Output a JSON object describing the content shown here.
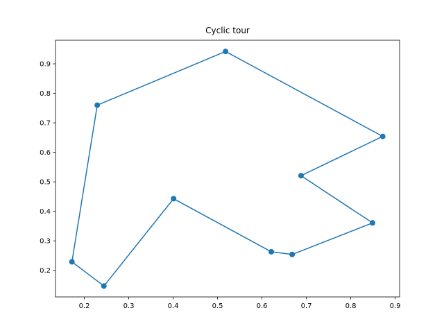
{
  "chart_data": {
    "type": "line",
    "title": "Cyclic tour",
    "xlabel": "",
    "ylabel": "",
    "xlim": [
      0.135,
      0.91
    ],
    "ylim": [
      0.11,
      0.98
    ],
    "xticks": [
      "0.2",
      "0.3",
      "0.4",
      "0.5",
      "0.6",
      "0.7",
      "0.8",
      "0.9"
    ],
    "yticks": [
      "0.2",
      "0.3",
      "0.4",
      "0.5",
      "0.6",
      "0.7",
      "0.8",
      "0.9"
    ],
    "grid": false,
    "marker": "circle",
    "line_color": "#1f77b4",
    "closed_path": true,
    "series": [
      {
        "points": [
          {
            "x": 0.518,
            "y": 0.942
          },
          {
            "x": 0.872,
            "y": 0.654
          },
          {
            "x": 0.688,
            "y": 0.521
          },
          {
            "x": 0.849,
            "y": 0.361
          },
          {
            "x": 0.668,
            "y": 0.254
          },
          {
            "x": 0.621,
            "y": 0.263
          },
          {
            "x": 0.401,
            "y": 0.443
          },
          {
            "x": 0.244,
            "y": 0.147
          },
          {
            "x": 0.172,
            "y": 0.229
          },
          {
            "x": 0.229,
            "y": 0.76
          },
          {
            "x": 0.518,
            "y": 0.942
          }
        ]
      }
    ]
  }
}
